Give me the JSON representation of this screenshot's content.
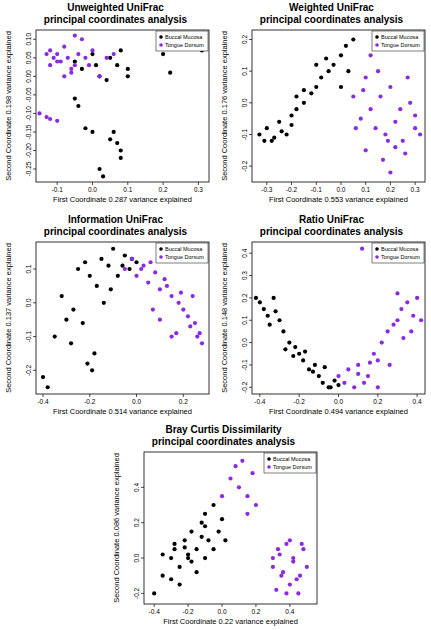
{
  "chart_data": [
    {
      "type": "scatter",
      "title": "Unweighted UniFrac",
      "subtitle": "principal coordinates analysis",
      "x_label": "First Coordinate 0.287 variance explained",
      "y_label": "Second Coordinate 0.198 variance explained",
      "xlim": [
        -0.16,
        0.33
      ],
      "ylim": [
        -0.285,
        0.125
      ],
      "xticks": [
        -0.1,
        {
          "value": 0,
          "label": "0.0"
        },
        0.1,
        0.2,
        0.3
      ],
      "yticks": [
        -0.25,
        {
          "value": -0.2,
          "label": "-0.20"
        },
        -0.15,
        {
          "value": -0.1,
          "label": "-0.10"
        },
        -0.05,
        {
          "value": 0,
          "label": "0.00"
        },
        0.05,
        {
          "value": 0.1,
          "label": "0.10"
        }
      ],
      "legend": "top-right",
      "grid": false,
      "marker": "circle",
      "series": [
        {
          "name": "Buccal Mucosa",
          "color": "#000000",
          "x": [
            -0.05,
            -0.03,
            0.0,
            0.02,
            0.05,
            0.07,
            0.08,
            0.1,
            0.04,
            0.01,
            0.2,
            0.3,
            0.31,
            0.22,
            -0.05,
            -0.04,
            -0.02,
            0.0,
            0.05,
            0.07,
            0.08,
            0.08,
            0.02,
            0.03,
            0.06,
            0.1
          ],
          "values": [
            0.04,
            0.02,
            0.06,
            0.0,
            0.05,
            0.03,
            0.07,
            0.02,
            -0.01,
            0.03,
            0.06,
            0.09,
            0.07,
            0.01,
            -0.06,
            -0.08,
            -0.14,
            -0.15,
            -0.17,
            -0.18,
            -0.2,
            -0.22,
            -0.25,
            -0.27,
            -0.15,
            0.0
          ]
        },
        {
          "name": "Tongue Dorsum",
          "color": "#8a2be2",
          "x": [
            -0.13,
            -0.12,
            -0.11,
            -0.1,
            -0.09,
            -0.12,
            -0.08,
            -0.07,
            -0.06,
            -0.05,
            -0.04,
            -0.03,
            -0.02,
            -0.08,
            -0.06,
            -0.1,
            -0.01,
            0.0,
            0.02,
            0.04,
            0.06,
            -0.05,
            -0.15,
            -0.13,
            -0.12,
            -0.1
          ],
          "values": [
            0.06,
            0.07,
            0.05,
            0.06,
            0.04,
            0.03,
            0.08,
            0.05,
            0.02,
            0.03,
            0.06,
            0.1,
            0.05,
            0.0,
            0.01,
            0.04,
            0.03,
            0.07,
            0.0,
            0.05,
            0.06,
            0.11,
            -0.1,
            -0.11,
            -0.115,
            -0.12
          ]
        }
      ]
    },
    {
      "type": "scatter",
      "title": "Weighted UniFrac",
      "subtitle": "principal coordinates analysis",
      "x_label": "First Coordinate 0.553 variance explained",
      "y_label": "Second Coordinate 0.176 variance explained",
      "xlim": [
        -0.36,
        0.34
      ],
      "ylim": [
        -0.25,
        0.23
      ],
      "xticks": [
        -0.3,
        -0.2,
        -0.1,
        {
          "value": 0,
          "label": "0.0"
        },
        0.1,
        0.2,
        0.3
      ],
      "yticks": [
        -0.2,
        -0.1,
        {
          "value": 0,
          "label": "0.0"
        },
        0.1,
        0.2
      ],
      "legend": "top-right",
      "grid": false,
      "marker": "circle",
      "series": [
        {
          "name": "Buccal Mucosa",
          "color": "#000000",
          "x": [
            -0.33,
            -0.3,
            -0.28,
            -0.25,
            -0.22,
            -0.2,
            -0.18,
            -0.15,
            -0.12,
            -0.1,
            -0.08,
            -0.05,
            -0.03,
            0.0,
            0.02,
            0.05,
            -0.27,
            -0.24,
            -0.2,
            -0.15,
            -0.1,
            -0.06,
            0.0,
            0.03,
            -0.31,
            -0.18
          ],
          "values": [
            -0.1,
            -0.08,
            -0.12,
            -0.06,
            -0.1,
            -0.04,
            -0.02,
            0.0,
            0.03,
            0.05,
            0.08,
            0.1,
            0.12,
            0.15,
            0.18,
            0.2,
            -0.11,
            -0.09,
            -0.07,
            0.04,
            0.12,
            0.14,
            0.05,
            0.1,
            -0.12,
            0.02
          ]
        },
        {
          "name": "Tongue Dorsum",
          "color": "#8a2be2",
          "x": [
            0.05,
            0.08,
            0.1,
            0.12,
            0.15,
            0.18,
            0.2,
            0.22,
            0.25,
            0.28,
            0.3,
            0.32,
            0.1,
            0.14,
            0.17,
            0.2,
            0.24,
            0.27,
            0.3,
            0.12,
            0.16,
            0.22,
            0.26,
            0.06,
            0.09,
            0.19
          ],
          "values": [
            0.02,
            -0.05,
            0.08,
            -0.02,
            0.1,
            -0.1,
            0.05,
            -0.06,
            -0.12,
            0.0,
            -0.08,
            -0.1,
            -0.15,
            -0.08,
            -0.18,
            -0.22,
            -0.02,
            0.08,
            -0.04,
            0.15,
            0.02,
            -0.14,
            -0.16,
            -0.08,
            0.04,
            -0.12
          ]
        }
      ]
    },
    {
      "type": "scatter",
      "title": "Information UniFrac",
      "subtitle": "principal coordinates analysis",
      "x_label": "First Coordinate 0.514 variance explained",
      "y_label": "Second Coordinate 0.137 variance explained",
      "xlim": [
        -0.43,
        0.31
      ],
      "ylim": [
        -0.27,
        0.18
      ],
      "xticks": [
        -0.4,
        -0.2,
        {
          "value": 0,
          "label": "0.0"
        },
        0.2
      ],
      "yticks": [
        -0.2,
        -0.1,
        {
          "value": 0,
          "label": "0.0"
        },
        0.1
      ],
      "legend": "top-right",
      "grid": false,
      "marker": "circle",
      "series": [
        {
          "name": "Buccal Mucosa",
          "color": "#000000",
          "x": [
            -0.4,
            -0.38,
            -0.35,
            -0.3,
            -0.28,
            -0.25,
            -0.22,
            -0.2,
            -0.18,
            -0.15,
            -0.12,
            -0.1,
            -0.08,
            -0.05,
            -0.03,
            0.0,
            -0.32,
            -0.27,
            -0.21,
            -0.17,
            -0.14,
            -0.06,
            -0.02,
            -0.23,
            -0.19,
            -0.11
          ],
          "values": [
            -0.22,
            -0.25,
            -0.1,
            -0.05,
            -0.12,
            0.1,
            0.12,
            0.08,
            -0.15,
            0.13,
            0.11,
            0.16,
            0.08,
            0.14,
            0.1,
            0.12,
            0.02,
            -0.02,
            -0.18,
            0.05,
            0.0,
            0.11,
            0.13,
            -0.06,
            -0.2,
            0.04
          ]
        },
        {
          "name": "Tongue Dorsum",
          "color": "#8a2be2",
          "x": [
            -0.05,
            -0.02,
            0.0,
            0.03,
            0.05,
            0.08,
            0.1,
            0.12,
            0.15,
            0.18,
            0.2,
            0.22,
            0.25,
            0.27,
            0.28,
            0.02,
            0.06,
            0.13,
            0.17,
            0.24,
            0.26,
            0.1,
            0.19,
            0.23,
            0.07,
            0.15
          ],
          "values": [
            0.1,
            0.13,
            0.08,
            0.11,
            0.06,
            0.09,
            0.04,
            0.07,
            0.02,
            0.0,
            -0.02,
            -0.04,
            -0.06,
            -0.09,
            -0.12,
            0.1,
            0.12,
            0.05,
            -0.09,
            0.02,
            -0.1,
            -0.05,
            0.03,
            -0.07,
            -0.02,
            -0.1
          ]
        }
      ]
    },
    {
      "type": "scatter",
      "title": "Ratio UniFrac",
      "subtitle": "principal coordinates analysis",
      "x_label": "First Coordinate 0.494 variance explained",
      "y_label": "Second Coordinate 0.148 variance explained",
      "xlim": [
        -0.44,
        0.44
      ],
      "ylim": [
        -0.23,
        0.45
      ],
      "xticks": [
        -0.4,
        -0.2,
        {
          "value": 0,
          "label": "0.0"
        },
        0.2,
        0.4
      ],
      "yticks": [
        -0.2,
        -0.1,
        {
          "value": 0,
          "label": "0.0"
        },
        0.1,
        0.2,
        0.3,
        0.4
      ],
      "legend": "top-right",
      "grid": false,
      "marker": "circle",
      "series": [
        {
          "name": "Buccal Mucosa",
          "color": "#000000",
          "x": [
            -0.42,
            -0.4,
            -0.38,
            -0.36,
            -0.33,
            -0.3,
            -0.28,
            -0.25,
            -0.22,
            -0.2,
            -0.18,
            -0.15,
            -0.12,
            -0.1,
            -0.08,
            -0.05,
            -0.02,
            0.0,
            -0.35,
            -0.27,
            -0.23,
            -0.17,
            -0.13,
            -0.07,
            -0.04,
            -0.32
          ],
          "values": [
            0.2,
            0.18,
            0.15,
            0.12,
            0.2,
            0.1,
            0.05,
            0.0,
            -0.02,
            -0.05,
            -0.08,
            -0.12,
            -0.1,
            -0.15,
            -0.18,
            -0.2,
            -0.17,
            -0.19,
            0.08,
            -0.03,
            -0.06,
            -0.04,
            -0.13,
            -0.11,
            -0.2,
            0.14
          ]
        },
        {
          "name": "Tongue Dorsum",
          "color": "#8a2be2",
          "x": [
            0.0,
            0.03,
            0.05,
            0.08,
            0.1,
            0.12,
            0.15,
            0.18,
            0.2,
            0.22,
            0.25,
            0.28,
            0.3,
            0.32,
            0.35,
            0.38,
            0.4,
            0.42,
            0.13,
            0.2,
            0.26,
            0.33,
            0.37,
            0.1,
            0.16,
            0.3
          ],
          "values": [
            -0.15,
            -0.18,
            -0.12,
            -0.2,
            -0.1,
            0.42,
            -0.15,
            -0.05,
            -0.08,
            0.0,
            0.05,
            0.08,
            0.1,
            0.15,
            0.18,
            0.12,
            0.2,
            0.1,
            -0.18,
            -0.2,
            -0.1,
            0.02,
            0.05,
            -0.14,
            -0.09,
            0.22
          ]
        }
      ]
    },
    {
      "type": "scatter",
      "title": "Bray Curtis Dissimilarity",
      "subtitle": "principal coordinates analysis",
      "x_label": "First Coordinate 0.22 variance explained",
      "y_label": "Second Coordinate 0.086 variance explained",
      "xlim": [
        -0.46,
        0.56
      ],
      "ylim": [
        -0.26,
        0.6
      ],
      "xticks": [
        -0.4,
        -0.2,
        {
          "value": 0,
          "label": "0.0"
        },
        0.2,
        0.4
      ],
      "yticks": [
        -0.2,
        {
          "value": 0,
          "label": "0.0"
        },
        0.2,
        0.4
      ],
      "legend": "top-right",
      "grid": false,
      "marker": "circle",
      "series": [
        {
          "name": "Buccal Mucosa",
          "color": "#000000",
          "x": [
            -0.4,
            -0.35,
            -0.3,
            -0.28,
            -0.25,
            -0.22,
            -0.2,
            -0.18,
            -0.15,
            -0.12,
            -0.1,
            -0.08,
            -0.05,
            -0.02,
            0.0,
            -0.3,
            -0.25,
            -0.2,
            -0.15,
            -0.1,
            -0.35,
            -0.22,
            -0.12,
            -0.05,
            0.02,
            -0.28,
            -0.18,
            -0.1
          ],
          "values": [
            -0.2,
            -0.1,
            0.0,
            0.05,
            -0.05,
            0.1,
            0.0,
            0.15,
            0.05,
            0.2,
            0.25,
            0.1,
            0.3,
            0.15,
            0.22,
            -0.12,
            -0.15,
            0.02,
            -0.08,
            0.0,
            0.02,
            0.06,
            0.12,
            0.05,
            0.1,
            0.08,
            -0.02,
            0.18
          ]
        },
        {
          "name": "Tongue Dorsum",
          "color": "#8a2be2",
          "x": [
            0.0,
            0.05,
            0.08,
            0.1,
            0.12,
            0.15,
            0.18,
            0.2,
            0.3,
            0.33,
            0.35,
            0.38,
            0.4,
            0.42,
            0.45,
            0.48,
            0.5,
            0.32,
            0.36,
            0.4,
            0.44,
            0.47,
            0.34,
            0.42,
            0.38,
            0.46,
            0.3,
            0.15
          ],
          "values": [
            0.35,
            0.45,
            0.52,
            0.4,
            0.55,
            0.35,
            0.48,
            0.3,
            -0.05,
            0.05,
            -0.1,
            0.08,
            -0.15,
            0.0,
            -0.2,
            0.05,
            -0.05,
            -0.18,
            -0.08,
            0.1,
            -0.12,
            0.08,
            0.02,
            -0.02,
            -0.2,
            -0.1,
            0.0,
            0.25
          ]
        }
      ]
    }
  ]
}
